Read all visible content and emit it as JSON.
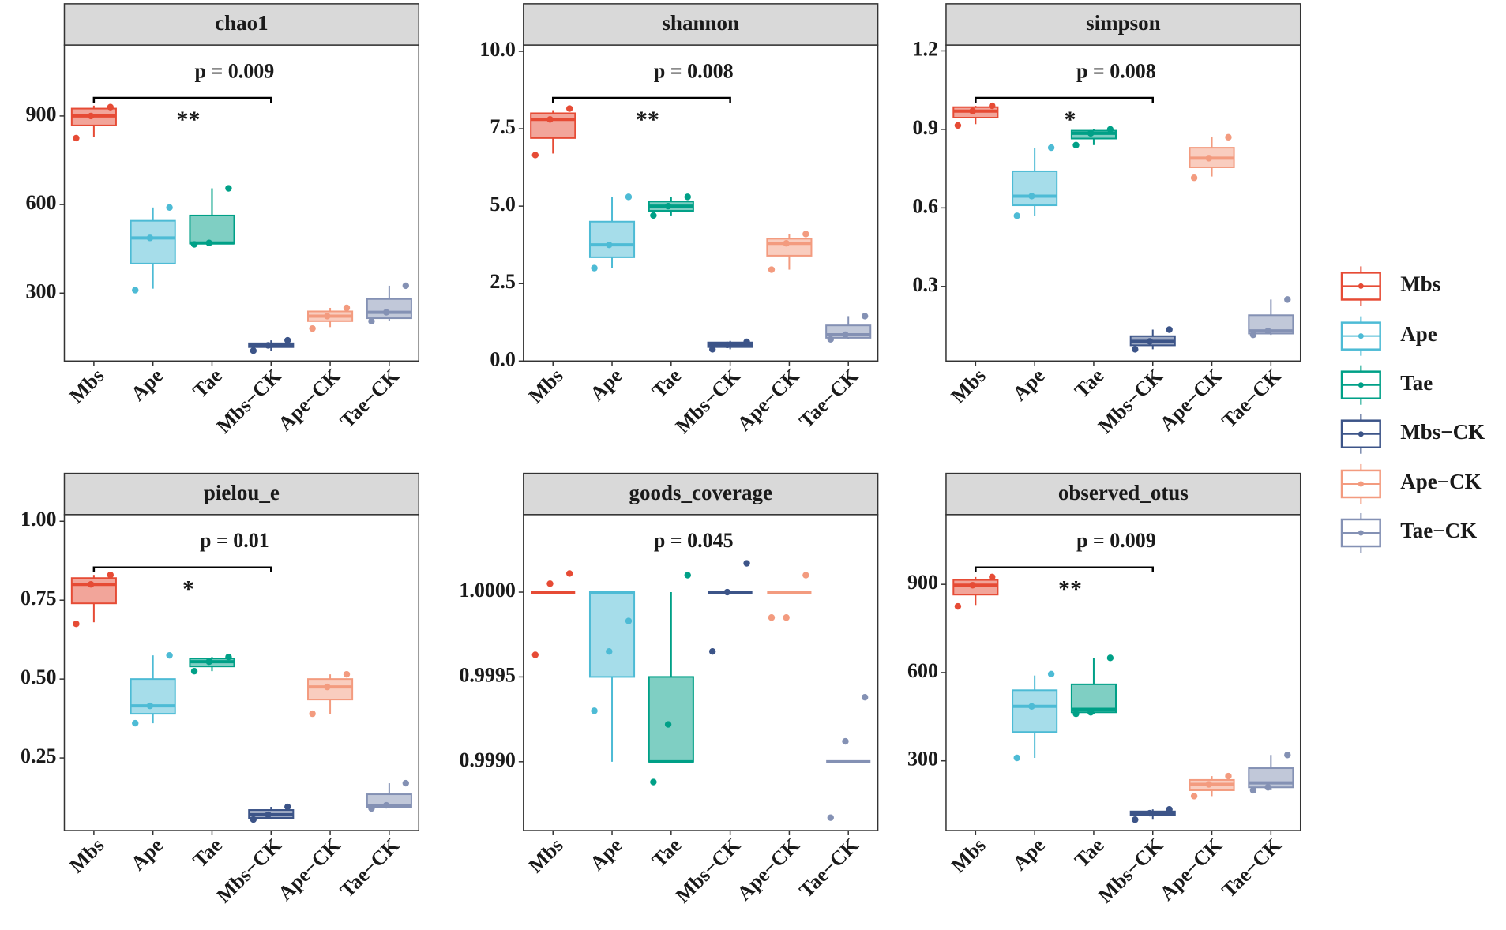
{
  "chart_data": [
    {
      "type": "box",
      "title": "chao1",
      "categories": [
        "Mbs",
        "Ape",
        "Tae",
        "Mbs−CK",
        "Ape−CK",
        "Tae−CK"
      ],
      "ylim": [
        70,
        1140
      ],
      "yticks": [
        300,
        600,
        900
      ],
      "boxes": [
        {
          "min": 830,
          "q1": 868,
          "median": 900,
          "q3": 925,
          "max": 935,
          "points": [
            930,
            900,
            825
          ]
        },
        {
          "min": 315,
          "q1": 400,
          "median": 487,
          "q3": 545,
          "max": 590,
          "points": [
            590,
            487,
            310
          ]
        },
        {
          "min": 465,
          "q1": 468,
          "median": 470,
          "q3": 563,
          "max": 655,
          "points": [
            655,
            470,
            465
          ]
        },
        {
          "min": 105,
          "q1": 117,
          "median": 123,
          "q3": 130,
          "max": 140,
          "points": [
            140,
            123,
            105
          ]
        },
        {
          "min": 185,
          "q1": 205,
          "median": 222,
          "q3": 238,
          "max": 250,
          "points": [
            250,
            222,
            180
          ]
        },
        {
          "min": 205,
          "q1": 215,
          "median": 235,
          "q3": 280,
          "max": 325,
          "points": [
            325,
            235,
            205
          ]
        }
      ],
      "p_label": "p = 0.009",
      "stars": "**",
      "bracket": true
    },
    {
      "type": "box",
      "title": "shannon",
      "categories": [
        "Mbs",
        "Ape",
        "Tae",
        "Mbs−CK",
        "Ape−CK",
        "Tae−CK"
      ],
      "ylim": [
        0,
        10.2
      ],
      "yticks": [
        {
          "value": 0,
          "label": "0.0"
        },
        2.5,
        {
          "value": 5,
          "label": "5.0"
        },
        7.5,
        {
          "value": 10,
          "label": "10.0"
        }
      ],
      "boxes": [
        {
          "min": 6.7,
          "q1": 7.2,
          "median": 7.8,
          "q3": 8.0,
          "max": 8.1,
          "points": [
            8.15,
            7.8,
            6.65
          ]
        },
        {
          "min": 3.0,
          "q1": 3.35,
          "median": 3.75,
          "q3": 4.5,
          "max": 5.3,
          "points": [
            5.3,
            3.75,
            3.0
          ]
        },
        {
          "min": 4.7,
          "q1": 4.85,
          "median": 5.0,
          "q3": 5.15,
          "max": 5.3,
          "points": [
            5.3,
            5.0,
            4.7
          ]
        },
        {
          "min": 0.38,
          "q1": 0.45,
          "median": 0.52,
          "q3": 0.6,
          "max": 0.65,
          "points": [
            0.62,
            0.52,
            0.38
          ]
        },
        {
          "min": 2.95,
          "q1": 3.4,
          "median": 3.8,
          "q3": 3.95,
          "max": 4.1,
          "points": [
            4.1,
            3.8,
            2.95
          ]
        },
        {
          "min": 0.7,
          "q1": 0.75,
          "median": 0.85,
          "q3": 1.15,
          "max": 1.45,
          "points": [
            1.45,
            0.85,
            0.7
          ]
        }
      ],
      "p_label": "p = 0.008",
      "stars": "**",
      "bracket": true
    },
    {
      "type": "box",
      "title": "simpson",
      "categories": [
        "Mbs",
        "Ape",
        "Tae",
        "Mbs−CK",
        "Ape−CK",
        "Tae−CK"
      ],
      "ylim": [
        0.015,
        1.222
      ],
      "yticks": [
        0.3,
        0.6,
        0.9,
        1.2
      ],
      "boxes": [
        {
          "min": 0.92,
          "q1": 0.945,
          "median": 0.97,
          "q3": 0.985,
          "max": 0.99,
          "points": [
            0.99,
            0.97,
            0.915
          ]
        },
        {
          "min": 0.57,
          "q1": 0.61,
          "median": 0.645,
          "q3": 0.74,
          "max": 0.83,
          "points": [
            0.83,
            0.645,
            0.57
          ]
        },
        {
          "min": 0.84,
          "q1": 0.865,
          "median": 0.885,
          "q3": 0.895,
          "max": 0.9,
          "points": [
            0.9,
            0.885,
            0.84
          ]
        },
        {
          "min": 0.06,
          "q1": 0.075,
          "median": 0.09,
          "q3": 0.11,
          "max": 0.135,
          "points": [
            0.135,
            0.09,
            0.06
          ]
        },
        {
          "min": 0.72,
          "q1": 0.755,
          "median": 0.79,
          "q3": 0.83,
          "max": 0.87,
          "points": [
            0.87,
            0.79,
            0.715
          ]
        },
        {
          "min": 0.115,
          "q1": 0.12,
          "median": 0.13,
          "q3": 0.19,
          "max": 0.25,
          "points": [
            0.25,
            0.13,
            0.115
          ]
        }
      ],
      "p_label": "p = 0.008",
      "stars": "*",
      "bracket": true
    },
    {
      "type": "box",
      "title": "pielou_e",
      "categories": [
        "Mbs",
        "Ape",
        "Tae",
        "Mbs−CK",
        "Ape−CK",
        "Tae−CK"
      ],
      "ylim": [
        0.02,
        1.021
      ],
      "yticks": [
        0.25,
        {
          "value": 0.5,
          "label": "0.50"
        },
        0.75,
        {
          "value": 1,
          "label": "1.00"
        }
      ],
      "boxes": [
        {
          "min": 0.68,
          "q1": 0.74,
          "median": 0.8,
          "q3": 0.82,
          "max": 0.83,
          "points": [
            0.83,
            0.8,
            0.675
          ]
        },
        {
          "min": 0.36,
          "q1": 0.39,
          "median": 0.415,
          "q3": 0.5,
          "max": 0.575,
          "points": [
            0.575,
            0.415,
            0.36
          ]
        },
        {
          "min": 0.525,
          "q1": 0.54,
          "median": 0.555,
          "q3": 0.565,
          "max": 0.57,
          "points": [
            0.57,
            0.555,
            0.525
          ]
        },
        {
          "min": 0.055,
          "q1": 0.06,
          "median": 0.07,
          "q3": 0.085,
          "max": 0.095,
          "points": [
            0.095,
            0.07,
            0.055
          ]
        },
        {
          "min": 0.39,
          "q1": 0.435,
          "median": 0.475,
          "q3": 0.5,
          "max": 0.515,
          "points": [
            0.515,
            0.475,
            0.39
          ]
        },
        {
          "min": 0.09,
          "q1": 0.095,
          "median": 0.1,
          "q3": 0.135,
          "max": 0.17,
          "points": [
            0.17,
            0.1,
            0.09
          ]
        }
      ],
      "p_label": "p = 0.01",
      "stars": "*",
      "bracket": true
    },
    {
      "type": "box",
      "title": "goods_coverage",
      "categories": [
        "Mbs",
        "Ape",
        "Tae",
        "Mbs−CK",
        "Ape−CK",
        "Tae−CK"
      ],
      "ylim": [
        0.998594,
        1.000457
      ],
      "yticks": [
        {
          "value": 0.999,
          "label": "0.9990"
        },
        0.9995,
        {
          "value": 1,
          "label": "1.0000"
        }
      ],
      "boxes": [
        {
          "min": 1,
          "q1": 1,
          "median": 1,
          "q3": 1,
          "max": 1,
          "points": [
            1.00011,
            1.00005,
            0.99963
          ]
        },
        {
          "min": 0.999,
          "q1": 0.9995,
          "median": 1,
          "q3": 1,
          "max": 1,
          "points": [
            0.99983,
            0.99965,
            0.9993
          ]
        },
        {
          "min": 0.999,
          "q1": 0.999,
          "median": 0.999,
          "q3": 0.9995,
          "max": 1,
          "points": [
            1.0001,
            0.99922,
            0.99888
          ]
        },
        {
          "min": 1,
          "q1": 1,
          "median": 1,
          "q3": 1,
          "max": 1,
          "points": [
            1.00017,
            1,
            0.99965
          ]
        },
        {
          "min": 1,
          "q1": 1,
          "median": 1,
          "q3": 1,
          "max": 1,
          "points": [
            1.0001,
            0.99985,
            0.99985
          ]
        },
        {
          "min": 0.999,
          "q1": 0.999,
          "median": 0.999,
          "q3": 0.999,
          "max": 0.999,
          "points": [
            0.99938,
            0.99912,
            0.99867
          ]
        }
      ],
      "p_label": "p = 0.045",
      "bracket": false
    },
    {
      "type": "box",
      "title": "observed_otus",
      "categories": [
        "Mbs",
        "Ape",
        "Tae",
        "Mbs−CK",
        "Ape−CK",
        "Tae−CK"
      ],
      "ylim": [
        63,
        1137
      ],
      "yticks": [
        300,
        600,
        900
      ],
      "boxes": [
        {
          "min": 830,
          "q1": 865,
          "median": 897,
          "q3": 915,
          "max": 925,
          "points": [
            925,
            897,
            825
          ]
        },
        {
          "min": 310,
          "q1": 398,
          "median": 485,
          "q3": 540,
          "max": 590,
          "points": [
            595,
            485,
            310
          ]
        },
        {
          "min": 460,
          "q1": 465,
          "median": 475,
          "q3": 560,
          "max": 650,
          "points": [
            650,
            465,
            460
          ]
        },
        {
          "min": 100,
          "q1": 115,
          "median": 122,
          "q3": 128,
          "max": 135,
          "points": [
            135,
            122,
            100
          ]
        },
        {
          "min": 180,
          "q1": 200,
          "median": 220,
          "q3": 235,
          "max": 248,
          "points": [
            248,
            220,
            180
          ]
        },
        {
          "min": 200,
          "q1": 210,
          "median": 225,
          "q3": 275,
          "max": 320,
          "points": [
            320,
            210,
            200
          ]
        }
      ],
      "p_label": "p = 0.009",
      "stars": "**",
      "bracket": true
    }
  ],
  "legend": {
    "series": [
      {
        "name": "Mbs",
        "color": "#e64b35"
      },
      {
        "name": "Ape",
        "color": "#4dbbd5"
      },
      {
        "name": "Tae",
        "color": "#00a087"
      },
      {
        "name": "Mbs−CK",
        "color": "#3c5488"
      },
      {
        "name": "Ape−CK",
        "color": "#f39b7f"
      },
      {
        "name": "Tae−CK",
        "color": "#8491b4"
      }
    ]
  }
}
